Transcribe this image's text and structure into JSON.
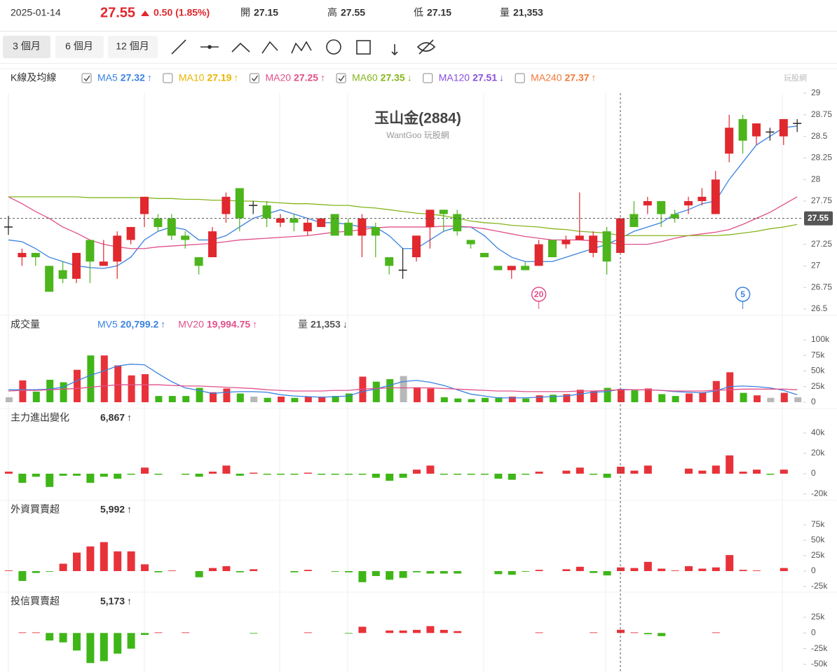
{
  "header": {
    "date": "2025-01-14",
    "price": "27.55",
    "change": "0.50 (1.85%)",
    "open_label": "開",
    "open": "27.15",
    "high_label": "高",
    "high": "27.55",
    "low_label": "低",
    "low": "27.15",
    "volume_label": "量",
    "volume": "21,353"
  },
  "toolbar": {
    "ranges": [
      "3 個月",
      "6 個月",
      "12 個月"
    ]
  },
  "watermark": "玩股網",
  "chart_data": [
    {
      "type": "candlestick",
      "title": "玉山金(2884)",
      "subtitle": "WantGoo 玩股網",
      "legend_title": "K線及均線",
      "up_color": "#e0282e",
      "down_color": "#4cb51c",
      "flat_color": "#222222",
      "open": [
        27.45,
        27.1,
        27.15,
        27.0,
        26.95,
        26.85,
        27.3,
        27.0,
        27.05,
        27.3,
        27.6,
        27.55,
        27.55,
        27.35,
        27.1,
        27.1,
        27.6,
        27.9,
        27.7,
        27.7,
        27.5,
        27.55,
        27.4,
        27.45,
        27.6,
        27.5,
        27.35,
        27.45,
        27.1,
        26.95,
        27.1,
        27.45,
        27.65,
        27.6,
        27.3,
        27.15,
        27.0,
        26.95,
        27.0,
        27.0,
        27.3,
        27.25,
        27.3,
        27.15,
        27.4,
        27.15,
        27.6,
        27.7,
        27.75,
        27.6,
        27.7,
        27.75,
        27.6,
        28.3,
        28.7,
        28.5,
        28.55,
        28.5,
        28.65
      ],
      "high": [
        27.58,
        27.2,
        27.15,
        27.0,
        27.05,
        27.15,
        27.3,
        27.3,
        27.4,
        27.45,
        27.8,
        27.6,
        27.6,
        27.4,
        27.1,
        27.45,
        27.85,
        27.9,
        27.75,
        27.75,
        27.6,
        27.6,
        27.55,
        27.55,
        27.6,
        27.55,
        27.6,
        27.5,
        27.1,
        27.2,
        27.35,
        27.65,
        27.65,
        27.65,
        27.3,
        27.15,
        27.0,
        27.0,
        27.05,
        27.3,
        27.3,
        27.35,
        27.85,
        27.4,
        27.45,
        27.55,
        27.75,
        27.8,
        27.75,
        27.65,
        27.8,
        27.9,
        28.1,
        28.75,
        28.75,
        28.65,
        28.6,
        28.7,
        28.7
      ],
      "low": [
        27.36,
        27.0,
        27.0,
        26.7,
        26.8,
        26.8,
        26.8,
        27.0,
        26.85,
        27.25,
        27.45,
        27.4,
        27.3,
        27.2,
        26.9,
        27.1,
        27.5,
        27.4,
        27.6,
        27.45,
        27.45,
        27.4,
        27.35,
        27.45,
        27.35,
        27.35,
        27.1,
        27.1,
        26.9,
        26.85,
        27.05,
        27.2,
        27.4,
        27.35,
        27.2,
        27.1,
        26.95,
        26.85,
        26.95,
        27.0,
        27.1,
        27.2,
        27.3,
        27.1,
        26.9,
        27.15,
        27.45,
        27.6,
        27.45,
        27.5,
        27.6,
        27.7,
        27.6,
        28.2,
        28.3,
        28.4,
        28.45,
        28.4,
        28.55
      ],
      "close": [
        27.45,
        27.15,
        27.1,
        26.7,
        26.85,
        27.15,
        27.05,
        27.05,
        27.35,
        27.45,
        27.8,
        27.45,
        27.35,
        27.3,
        27.0,
        27.4,
        27.8,
        27.55,
        27.7,
        27.55,
        27.55,
        27.5,
        27.5,
        27.55,
        27.35,
        27.35,
        27.55,
        27.35,
        27.0,
        26.95,
        27.35,
        27.65,
        27.6,
        27.4,
        27.25,
        27.1,
        26.95,
        27.0,
        26.95,
        27.25,
        27.1,
        27.3,
        27.35,
        27.35,
        27.05,
        27.55,
        27.45,
        27.75,
        27.6,
        27.55,
        27.75,
        27.8,
        28.0,
        28.6,
        28.45,
        28.65,
        28.55,
        28.7,
        28.65
      ],
      "series": [
        {
          "name": "MA5",
          "color": "#3b82e0",
          "value_label": "27.32",
          "arrow": "↑",
          "checked": true,
          "values": [
            27.3,
            27.28,
            27.2,
            27.1,
            27.05,
            27.0,
            26.98,
            26.97,
            27.0,
            27.1,
            27.3,
            27.4,
            27.45,
            27.42,
            27.3,
            27.3,
            27.35,
            27.45,
            27.55,
            27.6,
            27.65,
            27.6,
            27.55,
            27.5,
            27.5,
            27.48,
            27.45,
            27.45,
            27.35,
            27.2,
            27.2,
            27.3,
            27.4,
            27.45,
            27.45,
            27.35,
            27.2,
            27.1,
            27.05,
            27.05,
            27.05,
            27.1,
            27.15,
            27.2,
            27.25,
            27.32,
            27.4,
            27.45,
            27.5,
            27.6,
            27.65,
            27.72,
            27.75,
            28.0,
            28.2,
            28.4,
            28.5,
            28.6,
            28.62
          ]
        },
        {
          "name": "MA10",
          "color": "#e8b400",
          "value_label": "27.19",
          "arrow": "↑",
          "checked": false
        },
        {
          "name": "MA20",
          "color": "#e0508a",
          "value_label": "27.25",
          "arrow": "↑",
          "checked": true,
          "values": [
            27.8,
            27.72,
            27.63,
            27.55,
            27.45,
            27.38,
            27.3,
            27.25,
            27.22,
            27.2,
            27.2,
            27.22,
            27.23,
            27.24,
            27.25,
            27.26,
            27.28,
            27.3,
            27.31,
            27.32,
            27.33,
            27.34,
            27.35,
            27.37,
            27.39,
            27.4,
            27.42,
            27.44,
            27.45,
            27.45,
            27.45,
            27.45,
            27.46,
            27.46,
            27.45,
            27.43,
            27.4,
            27.37,
            27.34,
            27.32,
            27.3,
            27.3,
            27.3,
            27.29,
            27.27,
            27.25,
            27.25,
            27.25,
            27.28,
            27.32,
            27.35,
            27.37,
            27.39,
            27.42,
            27.48,
            27.55,
            27.62,
            27.71,
            27.8
          ]
        },
        {
          "name": "MA60",
          "color": "#86b51c",
          "value_label": "27.35",
          "arrow": "↓",
          "checked": true,
          "values": [
            27.8,
            27.8,
            27.8,
            27.8,
            27.8,
            27.8,
            27.79,
            27.79,
            27.79,
            27.79,
            27.79,
            27.78,
            27.78,
            27.77,
            27.77,
            27.76,
            27.76,
            27.75,
            27.75,
            27.74,
            27.73,
            27.72,
            27.72,
            27.71,
            27.7,
            27.7,
            27.68,
            27.67,
            27.65,
            27.63,
            27.61,
            27.6,
            27.58,
            27.55,
            27.52,
            27.5,
            27.49,
            27.47,
            27.46,
            27.45,
            27.43,
            27.42,
            27.4,
            27.39,
            27.38,
            27.35,
            27.35,
            27.35,
            27.35,
            27.35,
            27.35,
            27.35,
            27.35,
            27.36,
            27.38,
            27.4,
            27.43,
            27.45,
            27.48
          ]
        },
        {
          "name": "MA120",
          "color": "#8a4fd8",
          "value_label": "27.51",
          "arrow": "↓",
          "checked": false
        },
        {
          "name": "MA240",
          "color": "#f07a3a",
          "value_label": "27.37",
          "arrow": "↑",
          "checked": false
        }
      ],
      "last_price": 27.55,
      "annotations": [
        {
          "label": "20",
          "index": 39,
          "color": "#e0508a"
        },
        {
          "label": "5",
          "index": 54,
          "color": "#3b82e0"
        }
      ],
      "ylim": [
        26.5,
        29
      ],
      "yticks": [
        29,
        28.75,
        28.5,
        28.25,
        28,
        27.75,
        27.25,
        27,
        26.75,
        26.5
      ]
    },
    {
      "type": "volume",
      "title": "成交量",
      "up_color": "#e8323a",
      "down_color": "#3fb618",
      "flat_color": "#b8b8b8",
      "values": [
        8000,
        35000,
        17000,
        36000,
        32000,
        52000,
        75000,
        75000,
        59000,
        43000,
        45000,
        10000,
        10000,
        10000,
        23000,
        16000,
        22000,
        14000,
        9000,
        7000,
        9000,
        7000,
        9000,
        9000,
        10000,
        14000,
        41000,
        33000,
        37000,
        42000,
        24000,
        22000,
        8000,
        6000,
        5000,
        7000,
        8000,
        9000,
        6000,
        11000,
        12000,
        13000,
        20000,
        18000,
        23000,
        21353,
        19000,
        22000,
        13000,
        10000,
        14000,
        16000,
        34000,
        48000,
        15000,
        11000,
        7000,
        15000,
        8000
      ],
      "series": [
        {
          "name": "MV5",
          "color": "#3b82e0",
          "value_label": "20,799.2",
          "arrow": "↑",
          "values": [
            20000,
            20000,
            20000,
            21000,
            24000,
            34000,
            43000,
            50000,
            58000,
            61000,
            60000,
            46000,
            33000,
            23000,
            19000,
            14000,
            16000,
            17000,
            17000,
            16000,
            12000,
            10000,
            9000,
            8000,
            9000,
            10000,
            17000,
            21000,
            27000,
            33000,
            35000,
            32000,
            27000,
            20000,
            13000,
            10000,
            7000,
            7000,
            7000,
            8000,
            9000,
            10000,
            13000,
            16000,
            17000,
            20799.2,
            20000,
            20000,
            19000,
            17000,
            16000,
            15000,
            18000,
            25000,
            26000,
            25000,
            23000,
            19000,
            12000
          ]
        },
        {
          "name": "MV20",
          "color": "#e0508a",
          "value_label": "19,994.75",
          "arrow": "↑",
          "values": [
            18000,
            19000,
            19000,
            20000,
            21000,
            22000,
            24000,
            26000,
            28000,
            28000,
            28000,
            28000,
            27000,
            26000,
            26000,
            25000,
            24000,
            23000,
            22000,
            20000,
            19000,
            18000,
            18000,
            18000,
            19000,
            19000,
            21000,
            22000,
            23000,
            23000,
            23000,
            23000,
            22000,
            21000,
            20000,
            19000,
            18000,
            18000,
            17000,
            17000,
            17000,
            17000,
            18000,
            18000,
            19000,
            19994.75,
            20000,
            20000,
            19000,
            18000,
            18000,
            18000,
            19000,
            20000,
            21000,
            21000,
            21000,
            21000,
            20000
          ]
        }
      ],
      "volume_label": "量",
      "volume_value": "21,353",
      "volume_arrow": "↓",
      "ylim": [
        0,
        100000
      ],
      "yticks": [
        {
          "value": 100000,
          "label": "100k"
        },
        {
          "value": 75000,
          "label": "75k"
        },
        {
          "value": 50000,
          "label": "50k"
        },
        {
          "value": 25000,
          "label": "25k"
        },
        0
      ]
    },
    {
      "type": "bar",
      "title": "主力進出變化",
      "value_label": "6,867",
      "arrow": "↑",
      "up_color": "#e8323a",
      "down_color": "#3fb618",
      "values": [
        2000,
        -9000,
        -3000,
        -13000,
        -2000,
        -2000,
        -9000,
        -3000,
        -5000,
        -1000,
        6000,
        -1000,
        0,
        -1000,
        -3000,
        2000,
        8000,
        -2000,
        1000,
        -1000,
        -1000,
        -1000,
        1000,
        -1000,
        -1000,
        -1000,
        -1000,
        -4000,
        -7000,
        -4000,
        4000,
        8000,
        -1000,
        -1000,
        -1000,
        -1000,
        -5000,
        -6000,
        -1000,
        2000,
        0,
        3000,
        6000,
        -1000,
        -4000,
        6867,
        3000,
        8000,
        0,
        0,
        5000,
        3000,
        8000,
        18000,
        2000,
        4000,
        -1000,
        4000,
        0
      ],
      "ylim": [
        -20000,
        40000
      ],
      "yticks": [
        {
          "value": 40000,
          "label": "40k"
        },
        {
          "value": 20000,
          "label": "20k"
        },
        0,
        {
          "value": -20000,
          "label": "-20k"
        }
      ]
    },
    {
      "type": "bar",
      "title": "外資買賣超",
      "value_label": "5,992",
      "arrow": "↑",
      "up_color": "#e8323a",
      "down_color": "#3fb618",
      "values": [
        1000,
        -16000,
        -3000,
        -1000,
        12000,
        30000,
        40000,
        47000,
        32000,
        32000,
        11000,
        -2000,
        1000,
        0,
        -10000,
        5000,
        8000,
        -2000,
        3000,
        0,
        0,
        -2000,
        2000,
        0,
        -1000,
        -2000,
        -18000,
        -8000,
        -14000,
        -11000,
        -2000,
        -4000,
        -4000,
        -4000,
        0,
        0,
        -5000,
        -6000,
        -1000,
        2000,
        0,
        3000,
        7000,
        -3000,
        -7000,
        5992,
        5000,
        15000,
        4000,
        1000,
        8000,
        4000,
        6000,
        26000,
        2000,
        1000,
        0,
        5000,
        0
      ],
      "ylim": [
        -25000,
        75000
      ],
      "yticks": [
        {
          "value": 75000,
          "label": "75k"
        },
        {
          "value": 50000,
          "label": "50k"
        },
        {
          "value": 25000,
          "label": "25k"
        },
        0,
        {
          "value": -25000,
          "label": "-25k"
        }
      ]
    },
    {
      "type": "bar",
      "title": "投信買賣超",
      "value_label": "5,173",
      "arrow": "↑",
      "up_color": "#e8323a",
      "down_color": "#3fb618",
      "values": [
        0,
        1000,
        1000,
        -12000,
        -15000,
        -28000,
        -48000,
        -45000,
        -33000,
        -25000,
        -3000,
        1000,
        0,
        1000,
        0,
        0,
        0,
        0,
        -1000,
        0,
        0,
        0,
        1000,
        0,
        0,
        -1000,
        10000,
        0,
        4000,
        4000,
        5000,
        11000,
        5000,
        3000,
        0,
        0,
        0,
        0,
        0,
        1000,
        0,
        0,
        0,
        1000,
        0,
        5173,
        1000,
        -2000,
        -5000,
        0,
        0,
        0,
        1000,
        0,
        0,
        0,
        0,
        0,
        0
      ],
      "ylim": [
        -50000,
        25000
      ],
      "yticks": [
        {
          "value": 25000,
          "label": "25k"
        },
        0,
        {
          "value": -25000,
          "label": "-25k"
        },
        {
          "value": -50000,
          "label": "-50k"
        }
      ]
    }
  ]
}
